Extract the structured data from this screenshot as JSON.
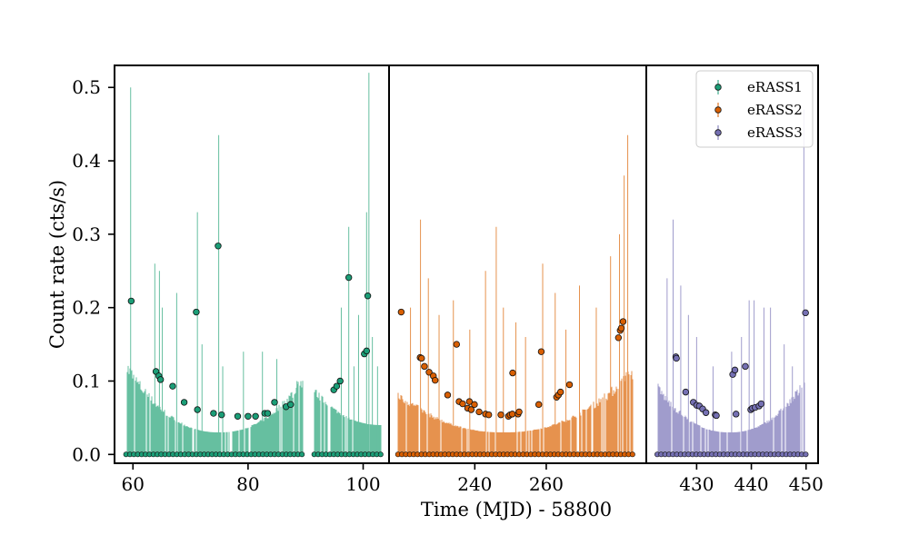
{
  "chart_data": {
    "type": "scatter",
    "xlabel": "Time (MJD) - 58800",
    "ylabel": "Count rate (cts/s)",
    "ylim": [
      -0.012,
      0.53
    ],
    "yticks": [
      0.0,
      0.1,
      0.2,
      0.3,
      0.4,
      0.5
    ],
    "ytick_labels": [
      "0.0",
      "0.1",
      "0.2",
      "0.3",
      "0.4",
      "0.5"
    ],
    "grid": false,
    "legend_position": "top-right",
    "panels": [
      {
        "xlim": [
          56.8,
          104.5
        ],
        "xticks": [
          60,
          80,
          100
        ],
        "xtick_labels": [
          "60",
          "80",
          "100"
        ]
      },
      {
        "xlim": [
          216,
          288
        ],
        "xticks": [
          240,
          260
        ],
        "xtick_labels": [
          "240",
          "260"
        ]
      },
      {
        "xlim": [
          420.8,
          452.2
        ],
        "xticks": [
          430,
          440,
          450
        ],
        "xtick_labels": [
          "430",
          "440",
          "450"
        ]
      }
    ],
    "series": [
      {
        "name": "eRASS1",
        "color": "#1b9e77",
        "band_color": "#66bfa0",
        "panel": 0,
        "segments": [
          [
            58.8,
            89.5,
            0.127,
            0.03,
            75
          ],
          [
            91.5,
            103.2,
            0.09,
            0.04,
            103.2
          ]
        ],
        "zero_ranges": [
          [
            58.8,
            89.5
          ],
          [
            91.5,
            103.2
          ]
        ],
        "spikes": [
          [
            59.6,
            0.5
          ],
          [
            63.8,
            0.26
          ],
          [
            64.6,
            0.25
          ],
          [
            65.1,
            0.2
          ],
          [
            67.6,
            0.22
          ],
          [
            71.2,
            0.33
          ],
          [
            72.0,
            0.15
          ],
          [
            74.9,
            0.435
          ],
          [
            75.6,
            0.12
          ],
          [
            79.2,
            0.14
          ],
          [
            82.5,
            0.14
          ],
          [
            85.0,
            0.13
          ],
          [
            88.5,
            0.1
          ],
          [
            96.2,
            0.2
          ],
          [
            97.5,
            0.31
          ],
          [
            98.4,
            0.12
          ],
          [
            99.2,
            0.19
          ],
          [
            100.6,
            0.33
          ],
          [
            101.0,
            0.52
          ],
          [
            101.6,
            0.16
          ],
          [
            102.5,
            0.12
          ]
        ],
        "points": [
          [
            59.7,
            0.209
          ],
          [
            64.0,
            0.113
          ],
          [
            64.5,
            0.107
          ],
          [
            64.8,
            0.102
          ],
          [
            66.9,
            0.093
          ],
          [
            68.9,
            0.071
          ],
          [
            71.0,
            0.194
          ],
          [
            71.2,
            0.061
          ],
          [
            74.0,
            0.056
          ],
          [
            74.8,
            0.284
          ],
          [
            75.4,
            0.054
          ],
          [
            78.2,
            0.052
          ],
          [
            80.0,
            0.052
          ],
          [
            81.3,
            0.052
          ],
          [
            82.9,
            0.056
          ],
          [
            83.4,
            0.056
          ],
          [
            84.6,
            0.071
          ],
          [
            86.6,
            0.065
          ],
          [
            87.4,
            0.068
          ],
          [
            94.9,
            0.088
          ],
          [
            95.4,
            0.093
          ],
          [
            96.0,
            0.1
          ],
          [
            97.5,
            0.241
          ],
          [
            100.2,
            0.137
          ],
          [
            100.6,
            0.141
          ],
          [
            100.8,
            0.216
          ]
        ]
      },
      {
        "name": "eRASS2",
        "color": "#d95f02",
        "band_color": "#e6924e",
        "panel": 1,
        "segments": [
          [
            218.5,
            284.5,
            0.12,
            0.03,
            248
          ]
        ],
        "zero_ranges": [
          [
            218.5,
            284.5
          ]
        ],
        "spikes": [
          [
            222.0,
            0.2
          ],
          [
            224.8,
            0.32
          ],
          [
            227.0,
            0.24
          ],
          [
            230.0,
            0.19
          ],
          [
            234.0,
            0.21
          ],
          [
            238.6,
            0.17
          ],
          [
            243.0,
            0.25
          ],
          [
            246.0,
            0.31
          ],
          [
            248.0,
            0.2
          ],
          [
            251.5,
            0.18
          ],
          [
            254.2,
            0.16
          ],
          [
            259.0,
            0.26
          ],
          [
            262.5,
            0.22
          ],
          [
            265.5,
            0.17
          ],
          [
            269.3,
            0.23
          ],
          [
            274.0,
            0.2
          ],
          [
            278.0,
            0.27
          ],
          [
            280.5,
            0.3
          ],
          [
            281.8,
            0.38
          ],
          [
            282.8,
            0.435
          ]
        ],
        "points": [
          [
            219.4,
            0.194
          ],
          [
            224.7,
            0.132
          ],
          [
            225.1,
            0.131
          ],
          [
            225.9,
            0.12
          ],
          [
            227.2,
            0.112
          ],
          [
            228.4,
            0.107
          ],
          [
            228.9,
            0.101
          ],
          [
            232.4,
            0.081
          ],
          [
            234.9,
            0.15
          ],
          [
            235.6,
            0.072
          ],
          [
            236.6,
            0.069
          ],
          [
            238.0,
            0.063
          ],
          [
            238.5,
            0.072
          ],
          [
            239.0,
            0.061
          ],
          [
            239.9,
            0.068
          ],
          [
            241.2,
            0.058
          ],
          [
            243.0,
            0.055
          ],
          [
            243.9,
            0.054
          ],
          [
            247.3,
            0.054
          ],
          [
            249.4,
            0.052
          ],
          [
            249.9,
            0.054
          ],
          [
            250.5,
            0.055
          ],
          [
            250.6,
            0.111
          ],
          [
            252.1,
            0.055
          ],
          [
            252.4,
            0.058
          ],
          [
            257.9,
            0.068
          ],
          [
            258.6,
            0.14
          ],
          [
            262.9,
            0.078
          ],
          [
            263.4,
            0.081
          ],
          [
            264.0,
            0.085
          ],
          [
            266.5,
            0.095
          ],
          [
            280.2,
            0.159
          ],
          [
            280.7,
            0.169
          ],
          [
            281.0,
            0.172
          ],
          [
            281.5,
            0.181
          ]
        ]
      },
      {
        "name": "eRASS3",
        "color": "#7570b3",
        "band_color": "#a09ccc",
        "panel": 2,
        "segments": [
          [
            422.8,
            450.0,
            0.105,
            0.03,
            436
          ]
        ],
        "zero_ranges": [
          [
            422.8,
            450.0
          ]
        ],
        "spikes": [
          [
            424.6,
            0.24
          ],
          [
            425.7,
            0.32
          ],
          [
            427.1,
            0.23
          ],
          [
            428.5,
            0.19
          ],
          [
            430.0,
            0.16
          ],
          [
            433.0,
            0.12
          ],
          [
            436.4,
            0.14
          ],
          [
            438.2,
            0.16
          ],
          [
            439.6,
            0.21
          ],
          [
            440.5,
            0.21
          ],
          [
            442.3,
            0.2
          ],
          [
            443.5,
            0.2
          ],
          [
            446.0,
            0.15
          ],
          [
            447.5,
            0.12
          ],
          [
            449.6,
            0.47
          ]
        ],
        "points": [
          [
            426.2,
            0.133
          ],
          [
            426.3,
            0.131
          ],
          [
            428.0,
            0.085
          ],
          [
            429.4,
            0.071
          ],
          [
            430.0,
            0.067
          ],
          [
            430.5,
            0.066
          ],
          [
            431.1,
            0.062
          ],
          [
            431.7,
            0.057
          ],
          [
            433.4,
            0.054
          ],
          [
            433.6,
            0.053
          ],
          [
            436.6,
            0.109
          ],
          [
            437.0,
            0.115
          ],
          [
            437.2,
            0.055
          ],
          [
            438.9,
            0.12
          ],
          [
            439.9,
            0.061
          ],
          [
            440.2,
            0.063
          ],
          [
            440.7,
            0.064
          ],
          [
            441.4,
            0.066
          ],
          [
            441.8,
            0.069
          ],
          [
            449.9,
            0.193
          ]
        ]
      }
    ]
  }
}
